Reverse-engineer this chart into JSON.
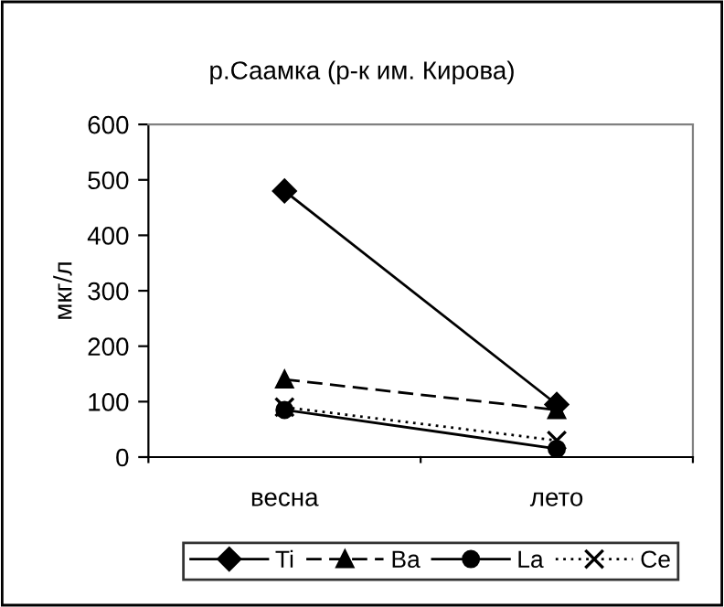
{
  "chart_data": {
    "type": "line",
    "title": "р.Саамка (р-к им. Кирова)",
    "ylabel": "мкг/л",
    "categories": [
      "весна",
      "лето"
    ],
    "ylim": [
      0,
      600
    ],
    "yticks": [
      0,
      100,
      200,
      300,
      400,
      500,
      600
    ],
    "grid": false,
    "legend": "bottom",
    "series": [
      {
        "name": "Ti",
        "color": "#000000",
        "values": [
          480,
          95
        ],
        "marker": "diamond",
        "line_style": "solid"
      },
      {
        "name": "Ba",
        "color": "#000000",
        "values": [
          140,
          85
        ],
        "marker": "triangle",
        "line_style": "dashed"
      },
      {
        "name": "La",
        "color": "#000000",
        "values": [
          85,
          15
        ],
        "marker": "circle",
        "line_style": "solid"
      },
      {
        "name": "Ce",
        "color": "#000000",
        "values": [
          90,
          30
        ],
        "marker": "cross",
        "line_style": "dotted"
      }
    ]
  }
}
